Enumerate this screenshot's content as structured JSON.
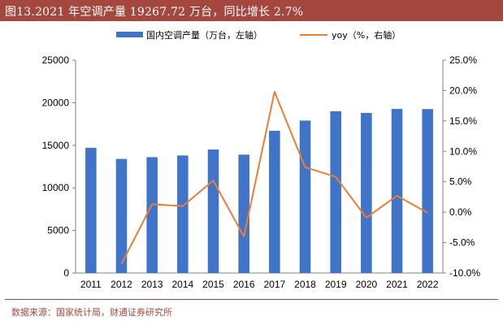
{
  "header": {
    "title": "图13.2021 年空调产量 19267.72 万台，同比增长 2.7%"
  },
  "footer": {
    "source": "数据来源：国家统计局，财通证券研究所"
  },
  "colors": {
    "bar": "#3f74c9",
    "line": "#ed7d31",
    "title_bg": "#a4483f"
  },
  "chart_data": {
    "type": "bar",
    "categories": [
      "2011",
      "2012",
      "2013",
      "2014",
      "2015",
      "2016",
      "2017",
      "2018",
      "2019",
      "2020",
      "2021",
      "2022"
    ],
    "series": [
      {
        "name": "国内空调产量（万台，左轴）",
        "type": "bar",
        "axis": "left",
        "values": [
          14700,
          13400,
          13600,
          13800,
          14500,
          13900,
          16700,
          17900,
          19000,
          18800,
          19268,
          19250
        ]
      },
      {
        "name": "yoy（%，右轴）",
        "type": "line",
        "axis": "right",
        "values": [
          null,
          -8.5,
          1.3,
          1.0,
          5.2,
          -4.0,
          19.8,
          7.4,
          5.8,
          -0.9,
          2.7,
          -0.1
        ]
      }
    ],
    "y_left": {
      "lim": [
        0,
        25000
      ],
      "ticks": [
        0,
        5000,
        10000,
        15000,
        20000,
        25000
      ],
      "tick_labels": [
        "0",
        "5000",
        "10000",
        "15000",
        "20000",
        "25000"
      ]
    },
    "y_right": {
      "lim": [
        -10,
        25
      ],
      "ticks": [
        -10,
        -5,
        0,
        5,
        10,
        15,
        20,
        25
      ],
      "tick_labels": [
        "-10.0%",
        "-5.0%",
        "0.0%",
        "5.0%",
        "10.0%",
        "15.0%",
        "20.0%",
        "25.0%"
      ]
    },
    "legend_position": "top-center",
    "grid": false
  }
}
